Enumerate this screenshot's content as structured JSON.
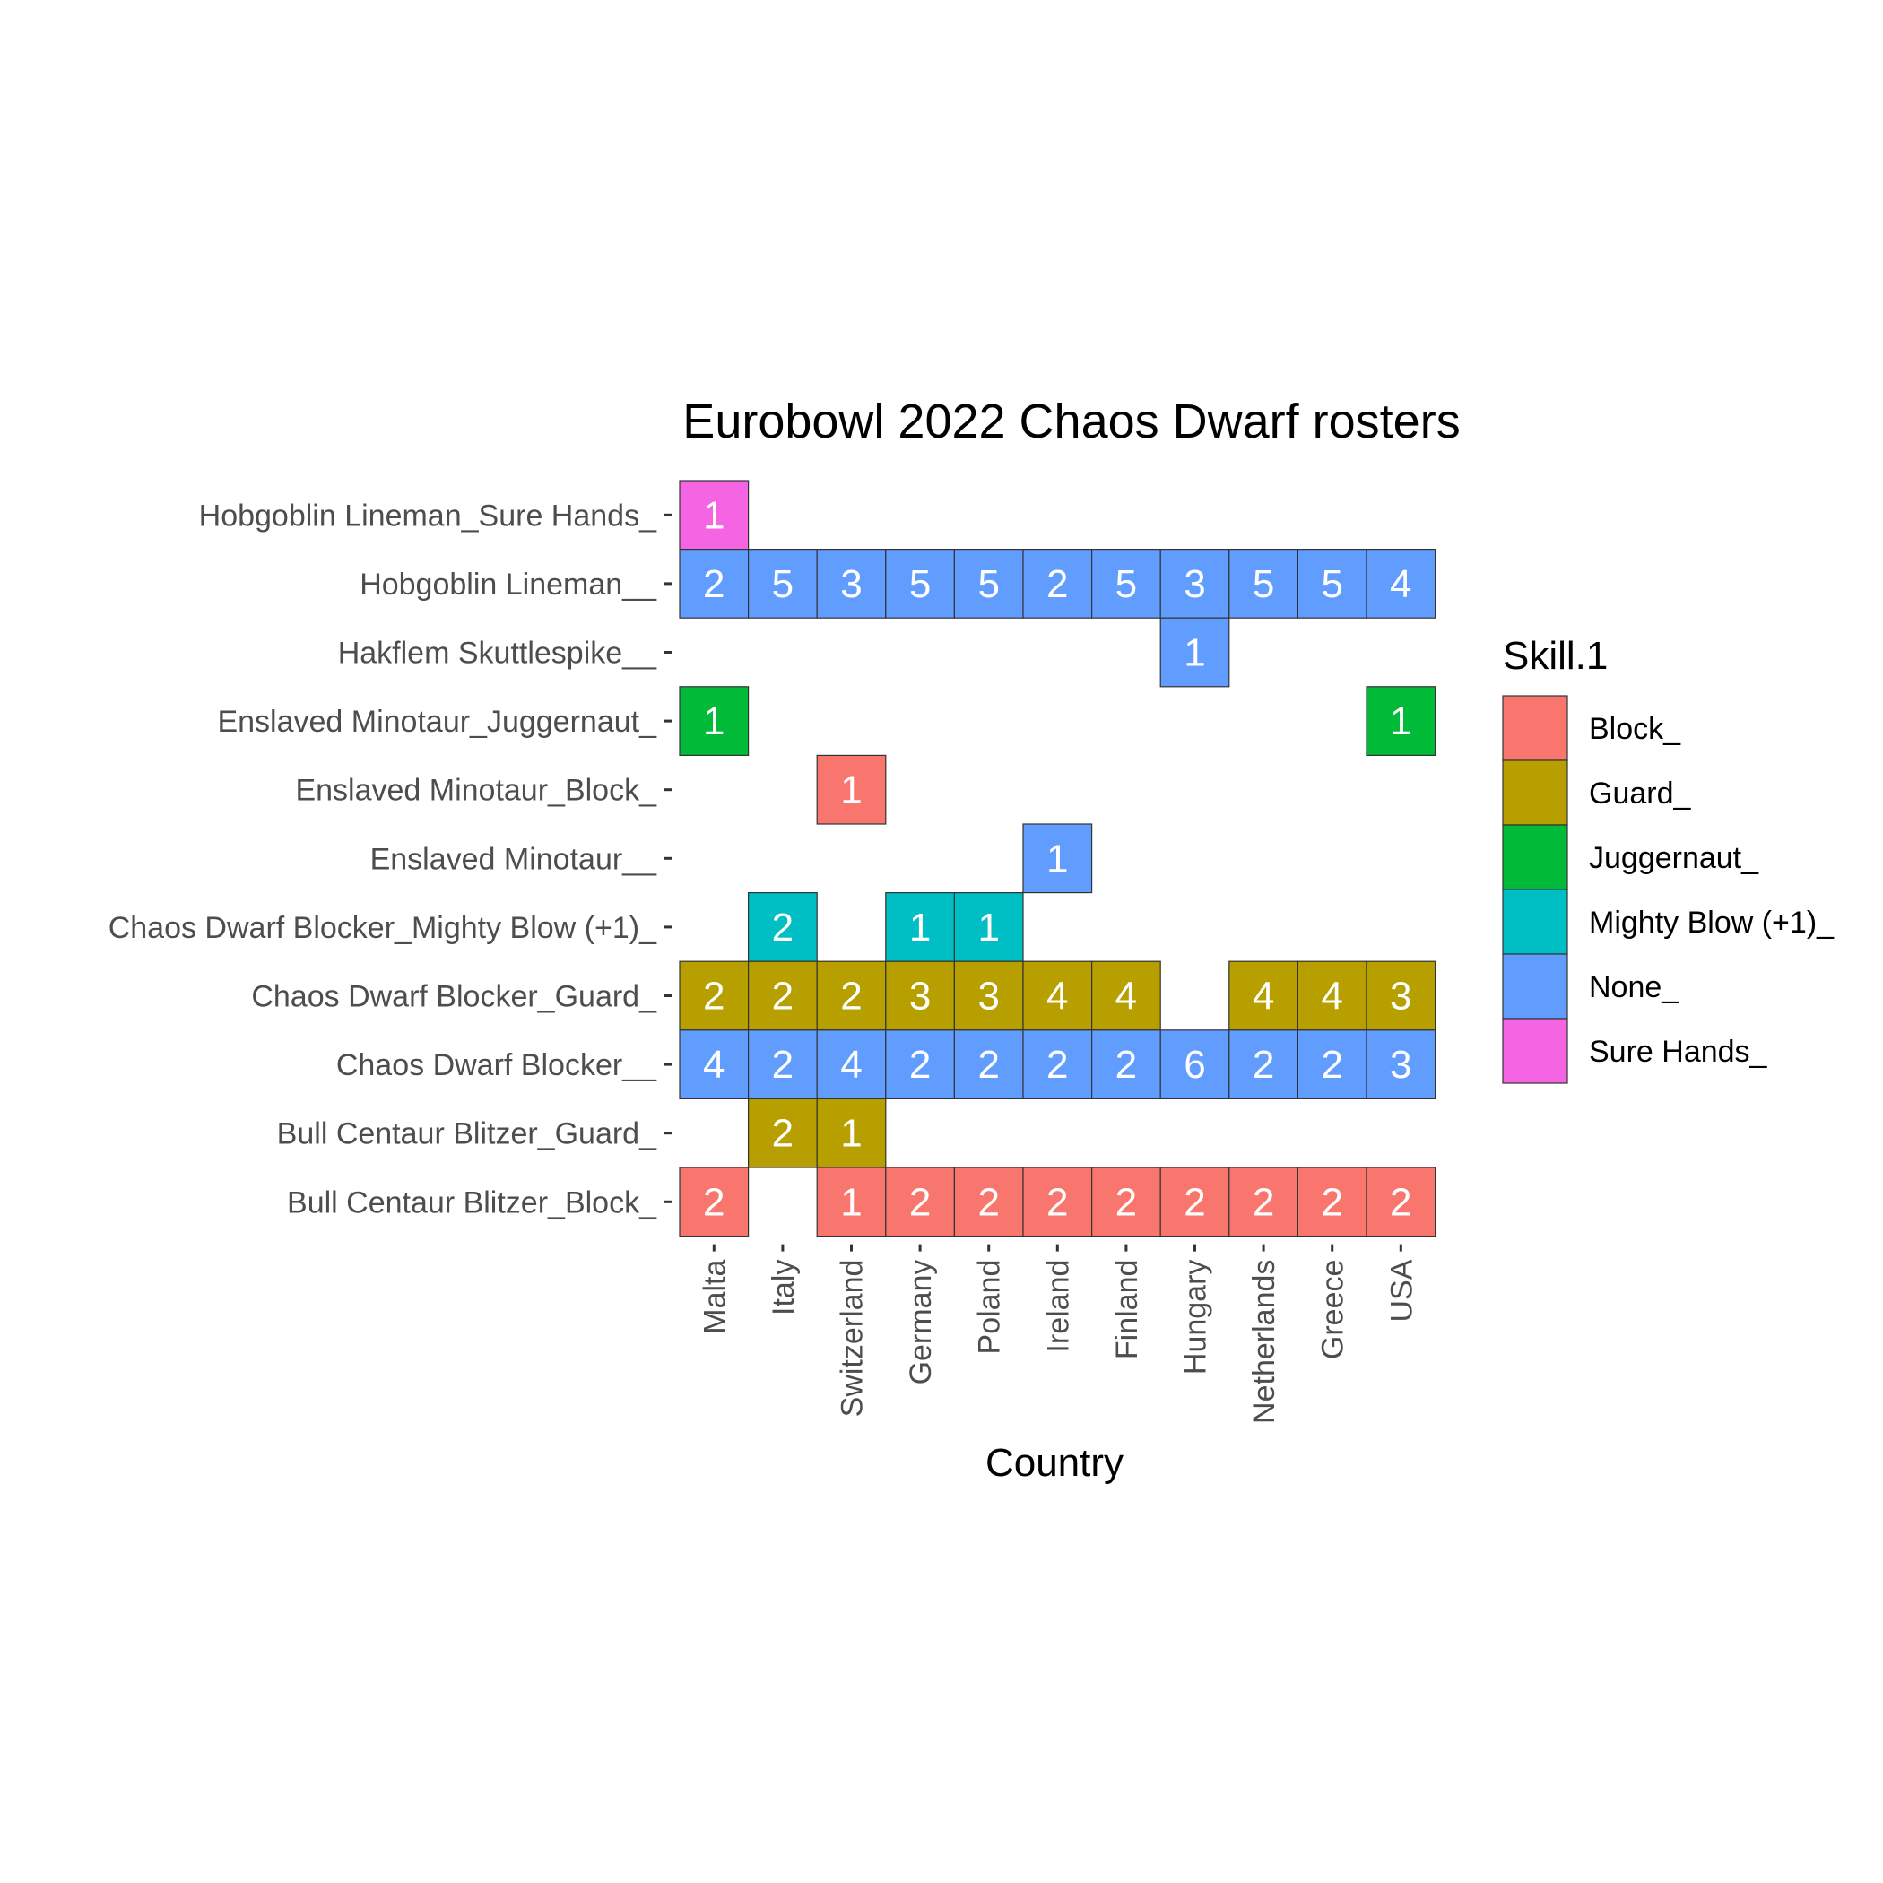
{
  "chart_data": {
    "type": "heatmap",
    "title": "Eurobowl 2022 Chaos Dwarf rosters",
    "xlabel": "Country",
    "ylabel": "",
    "x_categories": [
      "Malta",
      "Italy",
      "Switzerland",
      "Germany",
      "Poland",
      "Ireland",
      "Finland",
      "Hungary",
      "Netherlands",
      "Greece",
      "USA"
    ],
    "y_categories": [
      "Hobgoblin Lineman_Sure Hands_",
      "Hobgoblin Lineman__",
      "Hakflem Skuttlespike__",
      "Enslaved Minotaur_Juggernaut_",
      "Enslaved Minotaur_Block_",
      "Enslaved Minotaur__",
      "Chaos Dwarf Blocker_Mighty Blow (+1)_",
      "Chaos Dwarf Blocker_Guard_",
      "Chaos Dwarf Blocker__",
      "Bull Centaur Blitzer_Guard_",
      "Bull Centaur Blitzer_Block_"
    ],
    "fill_variable": "Skill.1",
    "legend": {
      "title": "Skill.1",
      "position": "right",
      "entries": [
        {
          "label": "Block_",
          "color": "#F8766D"
        },
        {
          "label": "Guard_",
          "color": "#B79F00"
        },
        {
          "label": "Juggernaut_",
          "color": "#00BA38"
        },
        {
          "label": "Mighty Blow (+1)_",
          "color": "#00BFC4"
        },
        {
          "label": "None_",
          "color": "#619CFF"
        },
        {
          "label": "Sure Hands_",
          "color": "#F564E3"
        }
      ]
    },
    "cells": [
      {
        "row": "Hobgoblin Lineman_Sure Hands_",
        "country": "Malta",
        "value": 1,
        "skill": "Sure Hands_"
      },
      {
        "row": "Hobgoblin Lineman__",
        "country": "Malta",
        "value": 2,
        "skill": "None_"
      },
      {
        "row": "Hobgoblin Lineman__",
        "country": "Italy",
        "value": 5,
        "skill": "None_"
      },
      {
        "row": "Hobgoblin Lineman__",
        "country": "Switzerland",
        "value": 3,
        "skill": "None_"
      },
      {
        "row": "Hobgoblin Lineman__",
        "country": "Germany",
        "value": 5,
        "skill": "None_"
      },
      {
        "row": "Hobgoblin Lineman__",
        "country": "Poland",
        "value": 5,
        "skill": "None_"
      },
      {
        "row": "Hobgoblin Lineman__",
        "country": "Ireland",
        "value": 2,
        "skill": "None_"
      },
      {
        "row": "Hobgoblin Lineman__",
        "country": "Finland",
        "value": 5,
        "skill": "None_"
      },
      {
        "row": "Hobgoblin Lineman__",
        "country": "Hungary",
        "value": 3,
        "skill": "None_"
      },
      {
        "row": "Hobgoblin Lineman__",
        "country": "Netherlands",
        "value": 5,
        "skill": "None_"
      },
      {
        "row": "Hobgoblin Lineman__",
        "country": "Greece",
        "value": 5,
        "skill": "None_"
      },
      {
        "row": "Hobgoblin Lineman__",
        "country": "USA",
        "value": 4,
        "skill": "None_"
      },
      {
        "row": "Hakflem Skuttlespike__",
        "country": "Hungary",
        "value": 1,
        "skill": "None_"
      },
      {
        "row": "Enslaved Minotaur_Juggernaut_",
        "country": "Malta",
        "value": 1,
        "skill": "Juggernaut_"
      },
      {
        "row": "Enslaved Minotaur_Juggernaut_",
        "country": "USA",
        "value": 1,
        "skill": "Juggernaut_"
      },
      {
        "row": "Enslaved Minotaur_Block_",
        "country": "Switzerland",
        "value": 1,
        "skill": "Block_"
      },
      {
        "row": "Enslaved Minotaur__",
        "country": "Ireland",
        "value": 1,
        "skill": "None_"
      },
      {
        "row": "Chaos Dwarf Blocker_Mighty Blow (+1)_",
        "country": "Italy",
        "value": 2,
        "skill": "Mighty Blow (+1)_"
      },
      {
        "row": "Chaos Dwarf Blocker_Mighty Blow (+1)_",
        "country": "Germany",
        "value": 1,
        "skill": "Mighty Blow (+1)_"
      },
      {
        "row": "Chaos Dwarf Blocker_Mighty Blow (+1)_",
        "country": "Poland",
        "value": 1,
        "skill": "Mighty Blow (+1)_"
      },
      {
        "row": "Chaos Dwarf Blocker_Guard_",
        "country": "Malta",
        "value": 2,
        "skill": "Guard_"
      },
      {
        "row": "Chaos Dwarf Blocker_Guard_",
        "country": "Italy",
        "value": 2,
        "skill": "Guard_"
      },
      {
        "row": "Chaos Dwarf Blocker_Guard_",
        "country": "Switzerland",
        "value": 2,
        "skill": "Guard_"
      },
      {
        "row": "Chaos Dwarf Blocker_Guard_",
        "country": "Germany",
        "value": 3,
        "skill": "Guard_"
      },
      {
        "row": "Chaos Dwarf Blocker_Guard_",
        "country": "Poland",
        "value": 3,
        "skill": "Guard_"
      },
      {
        "row": "Chaos Dwarf Blocker_Guard_",
        "country": "Ireland",
        "value": 4,
        "skill": "Guard_"
      },
      {
        "row": "Chaos Dwarf Blocker_Guard_",
        "country": "Finland",
        "value": 4,
        "skill": "Guard_"
      },
      {
        "row": "Chaos Dwarf Blocker_Guard_",
        "country": "Netherlands",
        "value": 4,
        "skill": "Guard_"
      },
      {
        "row": "Chaos Dwarf Blocker_Guard_",
        "country": "Greece",
        "value": 4,
        "skill": "Guard_"
      },
      {
        "row": "Chaos Dwarf Blocker_Guard_",
        "country": "USA",
        "value": 3,
        "skill": "Guard_"
      },
      {
        "row": "Chaos Dwarf Blocker__",
        "country": "Malta",
        "value": 4,
        "skill": "None_"
      },
      {
        "row": "Chaos Dwarf Blocker__",
        "country": "Italy",
        "value": 2,
        "skill": "None_"
      },
      {
        "row": "Chaos Dwarf Blocker__",
        "country": "Switzerland",
        "value": 4,
        "skill": "None_"
      },
      {
        "row": "Chaos Dwarf Blocker__",
        "country": "Germany",
        "value": 2,
        "skill": "None_"
      },
      {
        "row": "Chaos Dwarf Blocker__",
        "country": "Poland",
        "value": 2,
        "skill": "None_"
      },
      {
        "row": "Chaos Dwarf Blocker__",
        "country": "Ireland",
        "value": 2,
        "skill": "None_"
      },
      {
        "row": "Chaos Dwarf Blocker__",
        "country": "Finland",
        "value": 2,
        "skill": "None_"
      },
      {
        "row": "Chaos Dwarf Blocker__",
        "country": "Hungary",
        "value": 6,
        "skill": "None_"
      },
      {
        "row": "Chaos Dwarf Blocker__",
        "country": "Netherlands",
        "value": 2,
        "skill": "None_"
      },
      {
        "row": "Chaos Dwarf Blocker__",
        "country": "Greece",
        "value": 2,
        "skill": "None_"
      },
      {
        "row": "Chaos Dwarf Blocker__",
        "country": "USA",
        "value": 3,
        "skill": "None_"
      },
      {
        "row": "Bull Centaur Blitzer_Guard_",
        "country": "Italy",
        "value": 2,
        "skill": "Guard_"
      },
      {
        "row": "Bull Centaur Blitzer_Guard_",
        "country": "Switzerland",
        "value": 1,
        "skill": "Guard_"
      },
      {
        "row": "Bull Centaur Blitzer_Block_",
        "country": "Malta",
        "value": 2,
        "skill": "Block_"
      },
      {
        "row": "Bull Centaur Blitzer_Block_",
        "country": "Switzerland",
        "value": 1,
        "skill": "Block_"
      },
      {
        "row": "Bull Centaur Blitzer_Block_",
        "country": "Germany",
        "value": 2,
        "skill": "Block_"
      },
      {
        "row": "Bull Centaur Blitzer_Block_",
        "country": "Poland",
        "value": 2,
        "skill": "Block_"
      },
      {
        "row": "Bull Centaur Blitzer_Block_",
        "country": "Ireland",
        "value": 2,
        "skill": "Block_"
      },
      {
        "row": "Bull Centaur Blitzer_Block_",
        "country": "Finland",
        "value": 2,
        "skill": "Block_"
      },
      {
        "row": "Bull Centaur Blitzer_Block_",
        "country": "Hungary",
        "value": 2,
        "skill": "Block_"
      },
      {
        "row": "Bull Centaur Blitzer_Block_",
        "country": "Netherlands",
        "value": 2,
        "skill": "Block_"
      },
      {
        "row": "Bull Centaur Blitzer_Block_",
        "country": "Greece",
        "value": 2,
        "skill": "Block_"
      },
      {
        "row": "Bull Centaur Blitzer_Block_",
        "country": "USA",
        "value": 2,
        "skill": "Block_"
      }
    ],
    "grid": false
  }
}
